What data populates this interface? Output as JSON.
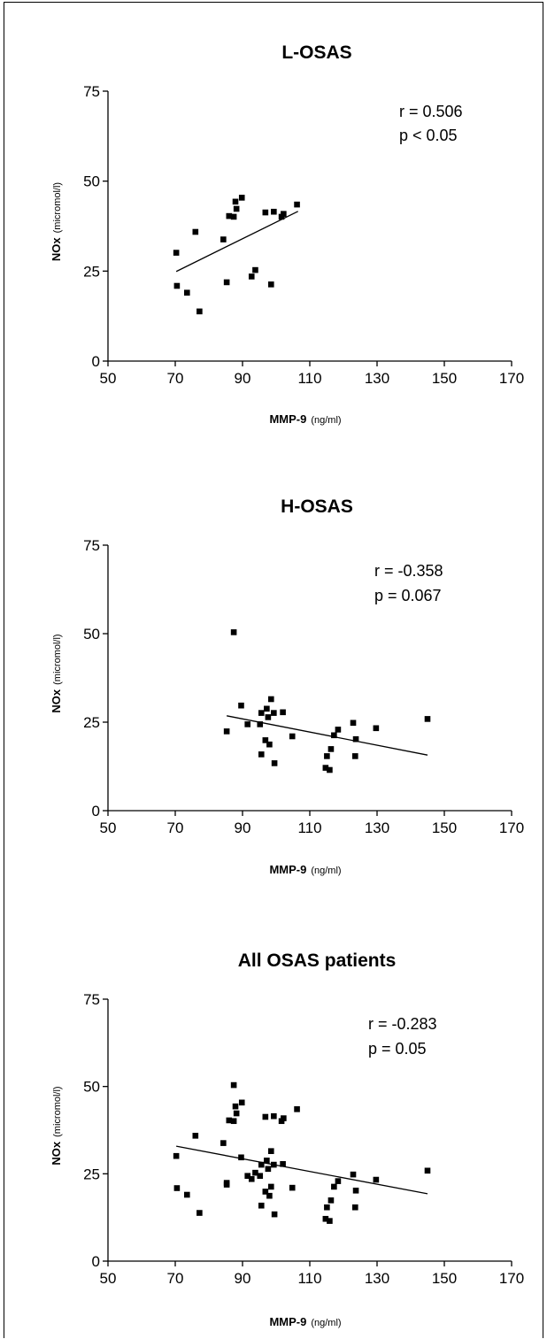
{
  "chart_data": [
    {
      "type": "scatter",
      "title": "L-OSAS",
      "xlabel": "MMP-9",
      "xlabel_unit": "(ng/ml)",
      "ylabel": "NOx",
      "ylabel_unit": "(micromol/l)",
      "xlim": [
        50,
        170
      ],
      "ylim": [
        0,
        75
      ],
      "xticks": [
        50,
        70,
        90,
        110,
        130,
        150,
        170
      ],
      "yticks": [
        0,
        25,
        50,
        75
      ],
      "annotation": [
        "r = 0.506",
        "p < 0.05"
      ],
      "points": [
        [
          70.3,
          30.1
        ],
        [
          70.5,
          20.9
        ],
        [
          73.5,
          19.0
        ],
        [
          76.0,
          35.9
        ],
        [
          77.2,
          13.8
        ],
        [
          84.3,
          33.8
        ],
        [
          85.3,
          21.9
        ],
        [
          86.0,
          40.3
        ],
        [
          87.4,
          40.1
        ],
        [
          87.9,
          44.3
        ],
        [
          88.2,
          42.3
        ],
        [
          89.8,
          45.4
        ],
        [
          92.7,
          23.5
        ],
        [
          93.8,
          25.3
        ],
        [
          96.8,
          41.3
        ],
        [
          98.5,
          21.3
        ],
        [
          99.3,
          41.5
        ],
        [
          101.6,
          40.1
        ],
        [
          102.2,
          40.9
        ],
        [
          106.2,
          43.5
        ]
      ],
      "trendline": [
        [
          70.3,
          24.9
        ],
        [
          106.5,
          41.6
        ]
      ],
      "grid": false,
      "legend": "none"
    },
    {
      "type": "scatter",
      "title": "H-OSAS",
      "xlabel": "MMP-9",
      "xlabel_unit": "(ng/ml)",
      "ylabel": "NOx",
      "ylabel_unit": "(micromol/l)",
      "xlim": [
        50,
        170
      ],
      "ylim": [
        0,
        75
      ],
      "xticks": [
        50,
        70,
        90,
        110,
        130,
        150,
        170
      ],
      "yticks": [
        0,
        25,
        50,
        75
      ],
      "annotation": [
        "r = -0.358",
        "p = 0.067"
      ],
      "points": [
        [
          85.3,
          22.4
        ],
        [
          87.4,
          50.4
        ],
        [
          89.6,
          29.7
        ],
        [
          91.5,
          24.4
        ],
        [
          95.2,
          24.4
        ],
        [
          95.6,
          27.6
        ],
        [
          95.6,
          15.9
        ],
        [
          96.8,
          19.9
        ],
        [
          97.2,
          28.8
        ],
        [
          97.6,
          26.4
        ],
        [
          98.0,
          18.7
        ],
        [
          98.5,
          31.5
        ],
        [
          99.3,
          27.6
        ],
        [
          99.5,
          13.4
        ],
        [
          102.0,
          27.8
        ],
        [
          104.8,
          21.0
        ],
        [
          114.7,
          12.1
        ],
        [
          115.1,
          15.4
        ],
        [
          115.9,
          11.5
        ],
        [
          116.3,
          17.4
        ],
        [
          117.2,
          21.3
        ],
        [
          118.4,
          22.9
        ],
        [
          122.9,
          24.8
        ],
        [
          123.5,
          15.4
        ],
        [
          123.7,
          20.2
        ],
        [
          129.7,
          23.3
        ],
        [
          145.0,
          25.9
        ]
      ],
      "trendline": [
        [
          85.3,
          26.8
        ],
        [
          145.0,
          15.7
        ]
      ],
      "grid": false,
      "legend": "none"
    },
    {
      "type": "scatter",
      "title": "All OSAS patients",
      "xlabel": "MMP-9",
      "xlabel_unit": "(ng/ml)",
      "ylabel": "NOx",
      "ylabel_unit": "(micromol/l)",
      "xlim": [
        50,
        170
      ],
      "ylim": [
        0,
        75
      ],
      "xticks": [
        50,
        70,
        90,
        110,
        130,
        150,
        170
      ],
      "yticks": [
        0,
        25,
        50,
        75
      ],
      "annotation": [
        "r = -0.283",
        "p = 0.05"
      ],
      "points": [
        [
          70.3,
          30.1
        ],
        [
          70.5,
          20.9
        ],
        [
          73.5,
          19.0
        ],
        [
          76.0,
          35.9
        ],
        [
          77.2,
          13.8
        ],
        [
          84.3,
          33.8
        ],
        [
          85.3,
          21.9
        ],
        [
          85.3,
          22.4
        ],
        [
          86.0,
          40.3
        ],
        [
          87.4,
          40.1
        ],
        [
          87.4,
          50.4
        ],
        [
          87.9,
          44.3
        ],
        [
          88.2,
          42.3
        ],
        [
          89.6,
          29.7
        ],
        [
          89.8,
          45.4
        ],
        [
          91.5,
          24.4
        ],
        [
          92.7,
          23.5
        ],
        [
          93.8,
          25.3
        ],
        [
          95.2,
          24.4
        ],
        [
          95.6,
          27.6
        ],
        [
          95.6,
          15.9
        ],
        [
          96.8,
          41.3
        ],
        [
          96.8,
          19.9
        ],
        [
          97.2,
          28.8
        ],
        [
          97.6,
          26.4
        ],
        [
          98.0,
          18.7
        ],
        [
          98.5,
          21.3
        ],
        [
          98.5,
          31.5
        ],
        [
          99.3,
          41.5
        ],
        [
          99.3,
          27.6
        ],
        [
          99.5,
          13.4
        ],
        [
          101.6,
          40.1
        ],
        [
          102.0,
          27.8
        ],
        [
          102.2,
          40.9
        ],
        [
          104.8,
          21.0
        ],
        [
          106.2,
          43.5
        ],
        [
          114.7,
          12.1
        ],
        [
          115.1,
          15.4
        ],
        [
          115.9,
          11.5
        ],
        [
          116.3,
          17.4
        ],
        [
          117.2,
          21.3
        ],
        [
          118.4,
          22.9
        ],
        [
          122.9,
          24.8
        ],
        [
          123.5,
          15.4
        ],
        [
          123.7,
          20.2
        ],
        [
          129.7,
          23.3
        ],
        [
          145.0,
          25.9
        ]
      ],
      "trendline": [
        [
          70.3,
          32.9
        ],
        [
          145.0,
          19.3
        ]
      ],
      "grid": false,
      "legend": "none"
    }
  ]
}
